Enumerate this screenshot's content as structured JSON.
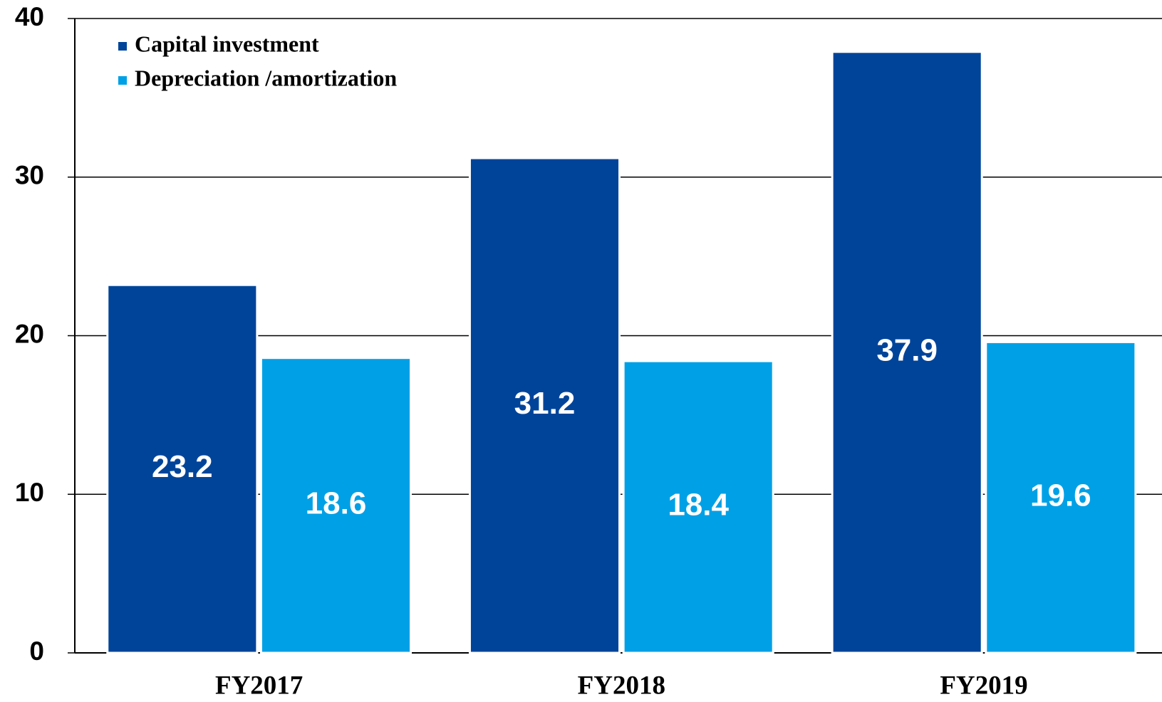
{
  "chart_data": {
    "type": "bar",
    "categories": [
      "FY2017",
      "FY2018",
      "FY2019"
    ],
    "series": [
      {
        "name": "Capital investment",
        "color": "#00449a",
        "values": [
          23.2,
          31.2,
          37.9
        ]
      },
      {
        "name": "Depreciation /amortization",
        "color": "#00a0e6",
        "values": [
          18.6,
          18.4,
          19.6
        ]
      }
    ],
    "ylim": [
      0,
      40
    ],
    "yticks": [
      0,
      10,
      20,
      30,
      40
    ],
    "grid": true,
    "legend": "upper left"
  }
}
